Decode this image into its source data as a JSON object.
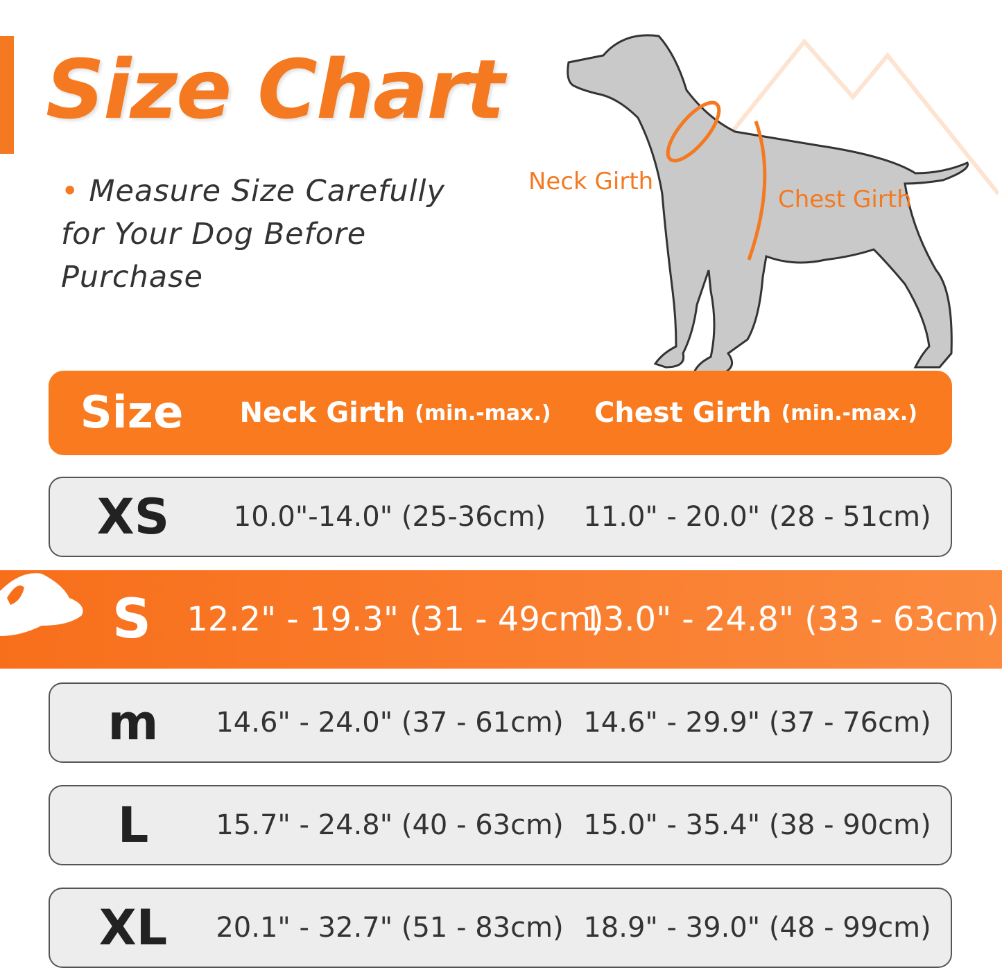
{
  "title": "Size Chart",
  "note": "Measure Size Carefully for Your Dog Before Purchase",
  "diagram": {
    "neck_label": "Neck Girth",
    "chest_label": "Chest Girth"
  },
  "colors": {
    "accent": "#f47920",
    "row_bg": "#ededed"
  },
  "header": {
    "size": "Size",
    "neck": "Neck Girth",
    "neck_sub": "(min.-max.)",
    "chest": "Chest Girth",
    "chest_sub": "(min.-max.)"
  },
  "rows": [
    {
      "size": "XS",
      "neck": "10.0\"-14.0\" (25-36cm)",
      "chest": "11.0\" - 20.0\" (28 - 51cm)"
    },
    {
      "size": "S",
      "neck": "12.2\" - 19.3\" (31 - 49cm)",
      "chest": "13.0\" - 24.8\" (33 - 63cm)",
      "highlighted": true
    },
    {
      "size": "M",
      "neck": "14.6\" - 24.0\" (37 - 61cm)",
      "chest": "14.6\" - 29.9\" (37 - 76cm)"
    },
    {
      "size": "L",
      "neck": "15.7\" - 24.8\" (40 - 63cm)",
      "chest": "15.0\" - 35.4\" (38 - 90cm)"
    },
    {
      "size": "XL",
      "neck": "20.1\" - 32.7\" (51 - 83cm)",
      "chest": "18.9\" - 39.0\" (48 - 99cm)"
    }
  ]
}
